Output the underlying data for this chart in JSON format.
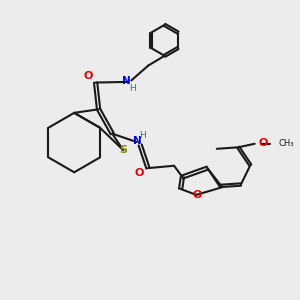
{
  "bg_color": "#ececec",
  "bond_color": "#1a1a1a",
  "S_color": "#8B8B00",
  "N_color": "#0000EE",
  "O_color": "#EE0000",
  "H_color": "#008B8B",
  "lw": 1.5,
  "dbg": 0.055,
  "xlim": [
    0,
    10
  ],
  "ylim": [
    0,
    10
  ]
}
